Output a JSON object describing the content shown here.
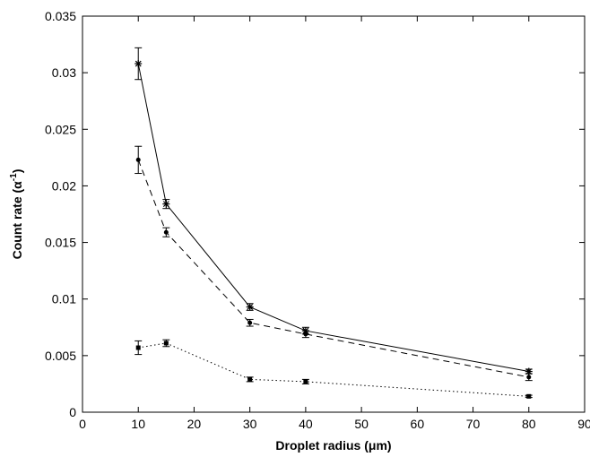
{
  "chart_data": {
    "type": "line",
    "xlabel": "Droplet radius (μm)",
    "ylabel_main": "Count rate (α",
    "ylabel_sup": "-1",
    "ylabel_end": ")",
    "xlim": [
      0,
      90
    ],
    "ylim": [
      0,
      0.035
    ],
    "x_ticks": [
      0,
      10,
      20,
      30,
      40,
      50,
      60,
      70,
      80,
      90
    ],
    "y_ticks": [
      0,
      0.005,
      0.01,
      0.015,
      0.02,
      0.025,
      0.03,
      0.035
    ],
    "x_tick_labels": [
      "0",
      "10",
      "20",
      "30",
      "40",
      "50",
      "60",
      "70",
      "80",
      "90"
    ],
    "y_tick_labels": [
      "0",
      "0.005",
      "0.01",
      "0.015",
      "0.02",
      "0.025",
      "0.03",
      "0.035"
    ],
    "grid": false,
    "series": [
      {
        "line_style": "solid",
        "marker": "star",
        "points": [
          {
            "x": 10,
            "y": 0.0308,
            "err": 0.0014
          },
          {
            "x": 15,
            "y": 0.0184,
            "err": 0.0004
          },
          {
            "x": 30,
            "y": 0.0093,
            "err": 0.0003
          },
          {
            "x": 40,
            "y": 0.0072,
            "err": 0.0003
          },
          {
            "x": 80,
            "y": 0.0036,
            "err": 0.0002
          }
        ]
      },
      {
        "line_style": "dashed",
        "marker": "dot",
        "points": [
          {
            "x": 10,
            "y": 0.0223,
            "err": 0.0012
          },
          {
            "x": 15,
            "y": 0.0159,
            "err": 0.0004
          },
          {
            "x": 30,
            "y": 0.0079,
            "err": 0.0003
          },
          {
            "x": 40,
            "y": 0.0069,
            "err": 0.0003
          },
          {
            "x": 80,
            "y": 0.0031,
            "err": 0.0003
          }
        ]
      },
      {
        "line_style": "dotted",
        "marker": "square",
        "points": [
          {
            "x": 10,
            "y": 0.0057,
            "err": 0.0006
          },
          {
            "x": 15,
            "y": 0.0061,
            "err": 0.0003
          },
          {
            "x": 30,
            "y": 0.0029,
            "err": 0.0002
          },
          {
            "x": 40,
            "y": 0.0027,
            "err": 0.0002
          },
          {
            "x": 80,
            "y": 0.0014,
            "err": 0.0001
          }
        ]
      }
    ]
  }
}
